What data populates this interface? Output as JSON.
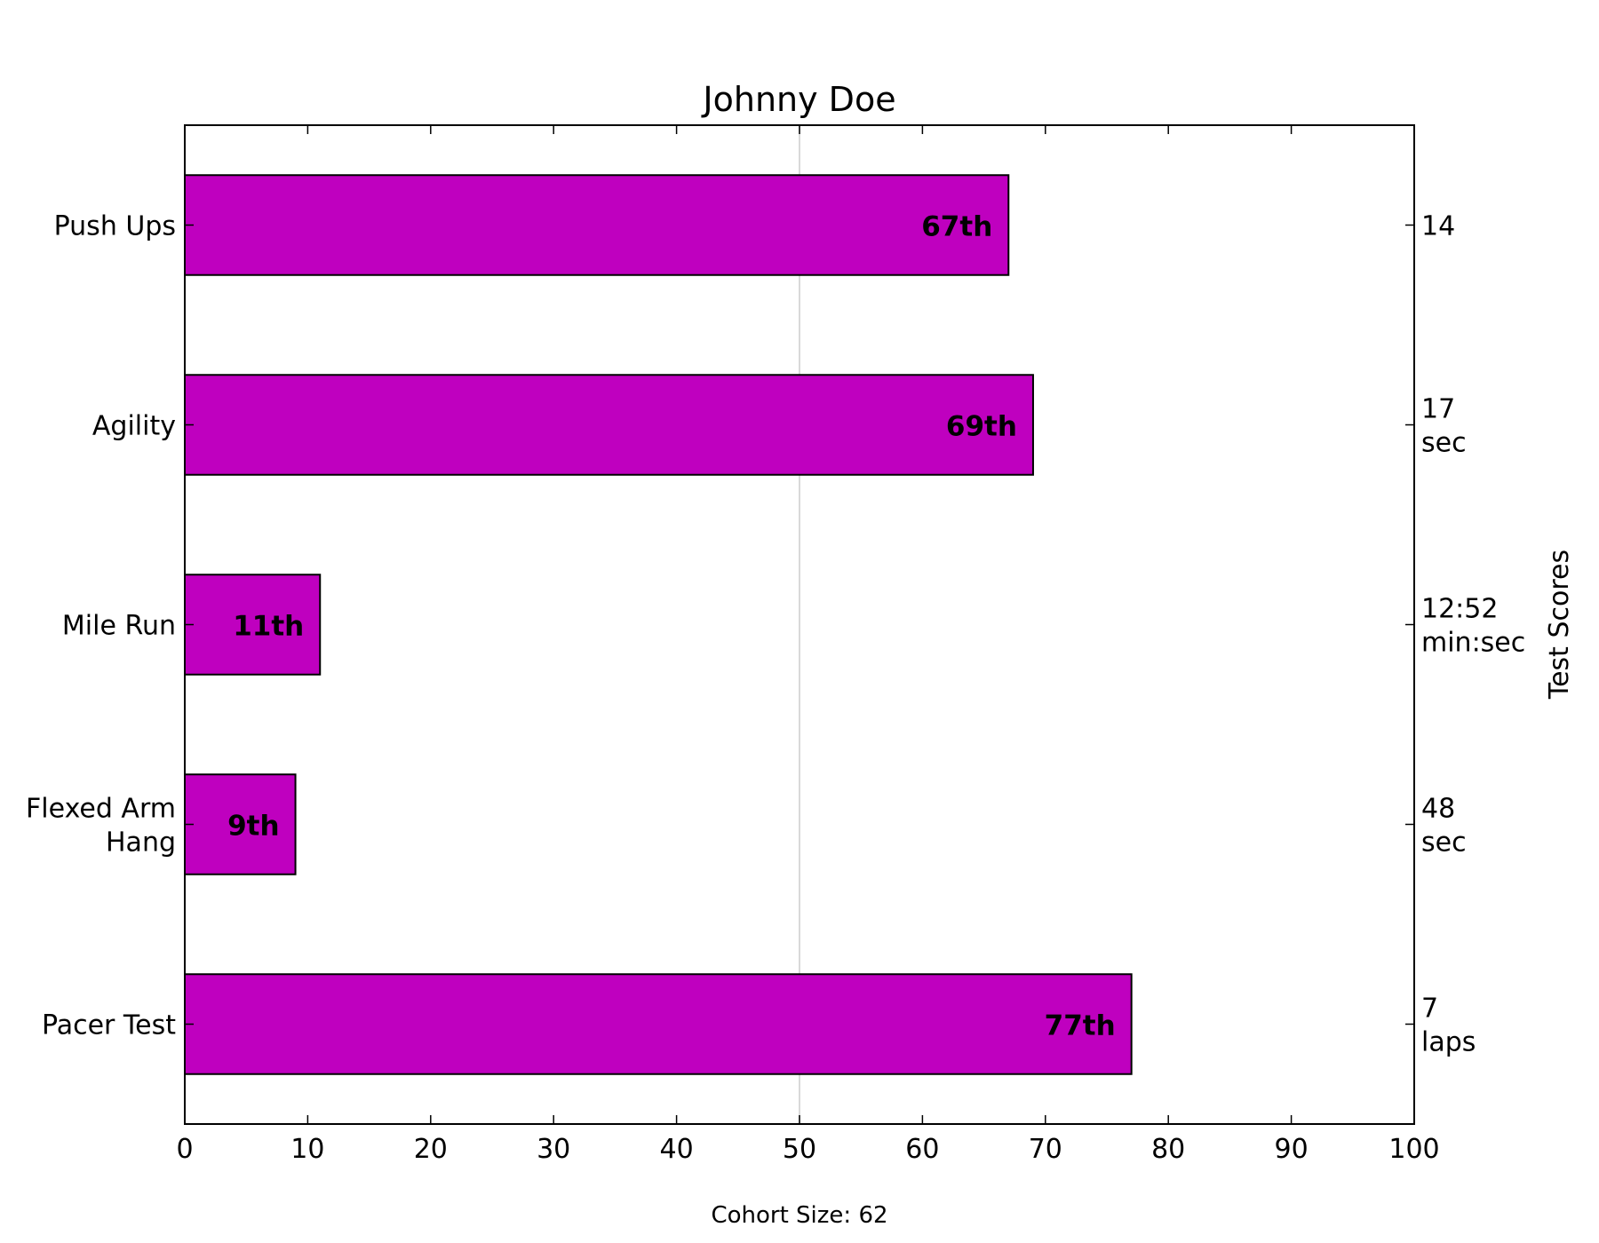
{
  "chart_data": {
    "type": "bar",
    "orientation": "horizontal",
    "title": "Johnny Doe",
    "categories": [
      "Push Ups",
      "Agility",
      "Mile Run",
      "Flexed Arm Hang",
      "Pacer Test"
    ],
    "category_lines": [
      [
        "Push Ups"
      ],
      [
        "Agility"
      ],
      [
        "Mile Run"
      ],
      [
        "Flexed Arm",
        "Hang"
      ],
      [
        "Pacer Test"
      ]
    ],
    "values": [
      67,
      69,
      11,
      9,
      77
    ],
    "value_labels": [
      "67th",
      "69th",
      "11th",
      "9th",
      "77th"
    ],
    "score_labels": [
      [
        "14"
      ],
      [
        "17",
        "sec"
      ],
      [
        "12:52",
        "min:sec"
      ],
      [
        "48",
        "sec"
      ],
      [
        "7",
        "laps"
      ]
    ],
    "xlim": [
      0,
      100
    ],
    "xticks": [
      0,
      10,
      20,
      30,
      40,
      50,
      60,
      70,
      80,
      90,
      100
    ],
    "right_ylabel": "Test Scores",
    "reference_line": 50,
    "footer": "Cohort Size: 62",
    "grid": false,
    "bar_color": "#bf00bf",
    "value_label_color": "#ffffff",
    "reference_line_color": "#d9d9d9"
  }
}
